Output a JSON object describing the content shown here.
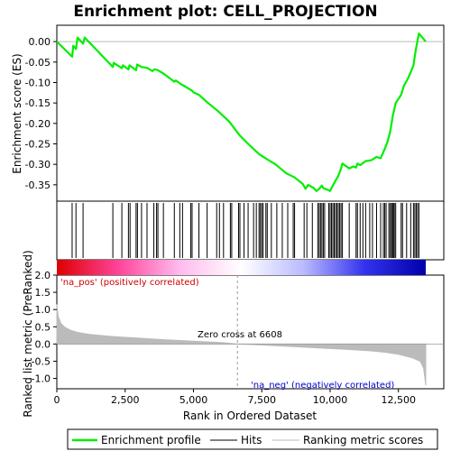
{
  "chart_data": {
    "type": "line",
    "title": "Enrichment plot: CELL_PROJECTION",
    "x_max": 13500,
    "x_ticks": [
      0,
      2500,
      5000,
      7500,
      10000,
      12500
    ],
    "x_tick_labels": [
      "0",
      "2,500",
      "5,000",
      "7,500",
      "10,000",
      "12,500"
    ],
    "xlabel": "Rank in Ordered Dataset",
    "es_panel": {
      "ylabel": "Enrichment score (ES)",
      "ylim": [
        -0.39,
        0.04
      ],
      "y_ticks": [
        0.0,
        -0.05,
        -0.1,
        -0.15,
        -0.2,
        -0.25,
        -0.3,
        -0.35
      ],
      "y_tick_labels": [
        "0.00",
        "-0.05",
        "-0.10",
        "-0.15",
        "-0.20",
        "-0.25",
        "-0.30",
        "-0.35"
      ],
      "series_name": "Enrichment profile",
      "color": "#00ee00",
      "points": [
        [
          0,
          0.0
        ],
        [
          560,
          -0.037
        ],
        [
          600,
          -0.01
        ],
        [
          700,
          -0.018
        ],
        [
          760,
          0.01
        ],
        [
          960,
          -0.005
        ],
        [
          1020,
          0.01
        ],
        [
          2050,
          -0.062
        ],
        [
          2080,
          -0.052
        ],
        [
          2380,
          -0.065
        ],
        [
          2420,
          -0.058
        ],
        [
          2620,
          -0.068
        ],
        [
          2660,
          -0.058
        ],
        [
          2900,
          -0.07
        ],
        [
          2940,
          -0.056
        ],
        [
          3100,
          -0.062
        ],
        [
          3300,
          -0.064
        ],
        [
          3500,
          -0.072
        ],
        [
          3560,
          -0.068
        ],
        [
          3600,
          -0.068
        ],
        [
          3700,
          -0.07
        ],
        [
          3900,
          -0.078
        ],
        [
          4300,
          -0.098
        ],
        [
          4350,
          -0.095
        ],
        [
          4500,
          -0.102
        ],
        [
          4700,
          -0.11
        ],
        [
          4950,
          -0.12
        ],
        [
          5000,
          -0.124
        ],
        [
          5200,
          -0.13
        ],
        [
          5500,
          -0.148
        ],
        [
          5900,
          -0.17
        ],
        [
          6300,
          -0.195
        ],
        [
          6700,
          -0.23
        ],
        [
          7000,
          -0.25
        ],
        [
          7400,
          -0.275
        ],
        [
          7700,
          -0.288
        ],
        [
          8000,
          -0.3
        ],
        [
          8400,
          -0.322
        ],
        [
          8700,
          -0.332
        ],
        [
          9000,
          -0.348
        ],
        [
          9100,
          -0.36
        ],
        [
          9200,
          -0.35
        ],
        [
          9400,
          -0.358
        ],
        [
          9500,
          -0.365
        ],
        [
          9600,
          -0.36
        ],
        [
          9700,
          -0.352
        ],
        [
          9750,
          -0.358
        ],
        [
          9900,
          -0.362
        ],
        [
          10000,
          -0.365
        ],
        [
          10050,
          -0.358
        ],
        [
          10100,
          -0.352
        ],
        [
          10200,
          -0.34
        ],
        [
          10300,
          -0.328
        ],
        [
          10400,
          -0.31
        ],
        [
          10450,
          -0.298
        ],
        [
          10700,
          -0.31
        ],
        [
          10850,
          -0.305
        ],
        [
          10950,
          -0.308
        ],
        [
          11000,
          -0.298
        ],
        [
          11100,
          -0.302
        ],
        [
          11300,
          -0.292
        ],
        [
          11500,
          -0.29
        ],
        [
          11700,
          -0.282
        ],
        [
          11850,
          -0.285
        ],
        [
          11950,
          -0.27
        ],
        [
          12000,
          -0.262
        ],
        [
          12100,
          -0.245
        ],
        [
          12200,
          -0.22
        ],
        [
          12250,
          -0.2
        ],
        [
          12300,
          -0.18
        ],
        [
          12350,
          -0.165
        ],
        [
          12400,
          -0.15
        ],
        [
          12600,
          -0.13
        ],
        [
          12700,
          -0.108
        ],
        [
          12850,
          -0.09
        ],
        [
          12950,
          -0.075
        ],
        [
          13050,
          -0.058
        ],
        [
          13100,
          -0.035
        ],
        [
          13150,
          -0.015
        ],
        [
          13250,
          0.02
        ],
        [
          13500,
          0.0
        ]
      ]
    },
    "hits": [
      560,
      700,
      960,
      2050,
      2380,
      2620,
      2680,
      2900,
      2950,
      3100,
      3300,
      3550,
      3650,
      3700,
      3900,
      4300,
      4500,
      4600,
      4900,
      4950,
      5200,
      5500,
      5850,
      5950,
      6100,
      6350,
      6400,
      6650,
      6700,
      6850,
      7000,
      7200,
      7300,
      7400,
      7450,
      7500,
      7550,
      7650,
      7700,
      7850,
      8050,
      8250,
      8450,
      8650,
      8700,
      9050,
      9150,
      9350,
      9550,
      9600,
      9650,
      9700,
      9750,
      9800,
      9950,
      10000,
      10050,
      10100,
      10150,
      10200,
      10250,
      10300,
      10350,
      10400,
      10450,
      10700,
      10950,
      11000,
      11100,
      11200,
      11300,
      11450,
      11550,
      11700,
      11850,
      11950,
      12000,
      12050,
      12150,
      12200,
      12250,
      12280,
      12320,
      12350,
      12400,
      12600,
      12650,
      12800,
      12950,
      13050,
      13100,
      13150,
      13200,
      13250
    ],
    "colorbar": {
      "stops": [
        "#dd0000",
        "#ff4499",
        "#ffbbee",
        "#ffffff",
        "#bbbbff",
        "#3333ee",
        "#0000aa"
      ]
    },
    "metric_panel": {
      "ylabel": "Ranked list metric (PreRanked)",
      "ylim": [
        -1.3,
        2.0
      ],
      "y_ticks": [
        2.0,
        1.5,
        1.0,
        0.5,
        0.0,
        -0.5,
        -1.0
      ],
      "y_tick_labels": [
        "2.0",
        "1.5",
        "1.0",
        "0.5",
        "0.0",
        "-0.5",
        "-1.0"
      ],
      "series_name": "Ranking metric scores",
      "color": "#bbbbbb",
      "points": [
        [
          0,
          1.15
        ],
        [
          50,
          0.8
        ],
        [
          150,
          0.6
        ],
        [
          300,
          0.48
        ],
        [
          500,
          0.4
        ],
        [
          800,
          0.33
        ],
        [
          1200,
          0.28
        ],
        [
          2000,
          0.22
        ],
        [
          3000,
          0.17
        ],
        [
          4000,
          0.12
        ],
        [
          5000,
          0.08
        ],
        [
          6000,
          0.04
        ],
        [
          6608,
          0.0
        ],
        [
          7500,
          -0.03
        ],
        [
          8500,
          -0.07
        ],
        [
          9500,
          -0.11
        ],
        [
          10500,
          -0.15
        ],
        [
          11500,
          -0.2
        ],
        [
          12000,
          -0.24
        ],
        [
          12500,
          -0.3
        ],
        [
          13000,
          -0.4
        ],
        [
          13300,
          -0.5
        ],
        [
          13420,
          -0.7
        ],
        [
          13470,
          -1.0
        ],
        [
          13500,
          -1.2
        ]
      ],
      "zero_cross": 6608
    },
    "annotations": {
      "pos": "'na_pos' (positively correlated)",
      "neg": "'na_neg' (negatively correlated)",
      "zero": "Zero cross at 6608"
    },
    "legend": [
      {
        "label": "Enrichment profile",
        "color": "#00ee00"
      },
      {
        "label": "Hits",
        "color": "#000000"
      },
      {
        "label": "Ranking metric scores",
        "color": "#bbbbbb"
      }
    ]
  }
}
